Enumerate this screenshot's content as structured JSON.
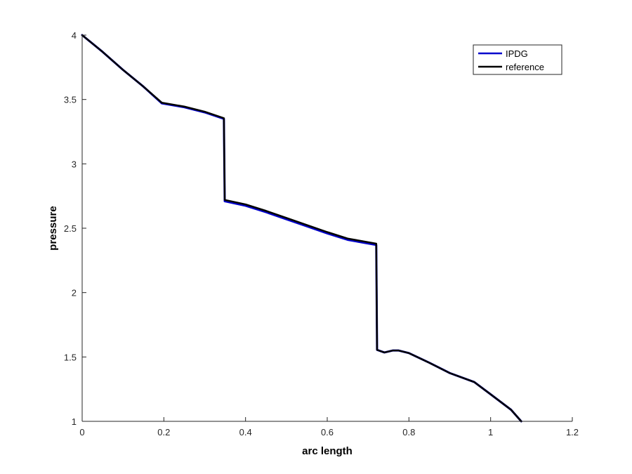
{
  "chart_data": {
    "type": "line",
    "title": "",
    "xlabel": "arc length",
    "ylabel": "pressure",
    "xlim": [
      0,
      1.2
    ],
    "ylim": [
      1,
      4
    ],
    "xticks": [
      0,
      0.2,
      0.4,
      0.6,
      0.8,
      1,
      1.2
    ],
    "yticks": [
      1,
      1.5,
      2,
      2.5,
      3,
      3.5,
      4
    ],
    "xtick_labels": [
      "0",
      "0.2",
      "0.4",
      "0.6",
      "0.8",
      "1",
      "1.2"
    ],
    "ytick_labels": [
      "1",
      "1.5",
      "2",
      "2.5",
      "3",
      "3.5",
      "4"
    ],
    "grid": false,
    "legend_position": "top-right",
    "series": [
      {
        "name": "IPDG",
        "color": "#0000cc",
        "points": [
          [
            0.0,
            4.0
          ],
          [
            0.05,
            3.87
          ],
          [
            0.1,
            3.73
          ],
          [
            0.15,
            3.6
          ],
          [
            0.195,
            3.47
          ],
          [
            0.25,
            3.44
          ],
          [
            0.3,
            3.4
          ],
          [
            0.347,
            3.35
          ],
          [
            0.349,
            2.71
          ],
          [
            0.4,
            2.675
          ],
          [
            0.45,
            2.625
          ],
          [
            0.5,
            2.57
          ],
          [
            0.55,
            2.515
          ],
          [
            0.6,
            2.46
          ],
          [
            0.65,
            2.41
          ],
          [
            0.72,
            2.37
          ],
          [
            0.722,
            1.555
          ],
          [
            0.74,
            1.535
          ],
          [
            0.76,
            1.55
          ],
          [
            0.775,
            1.55
          ],
          [
            0.8,
            1.53
          ],
          [
            0.85,
            1.455
          ],
          [
            0.9,
            1.375
          ],
          [
            0.96,
            1.305
          ],
          [
            1.0,
            1.21
          ],
          [
            1.05,
            1.09
          ],
          [
            1.075,
            1.0
          ]
        ]
      },
      {
        "name": "reference",
        "color": "#000000",
        "points": [
          [
            0.0,
            4.0
          ],
          [
            0.05,
            3.87
          ],
          [
            0.1,
            3.73
          ],
          [
            0.15,
            3.6
          ],
          [
            0.195,
            3.475
          ],
          [
            0.25,
            3.445
          ],
          [
            0.3,
            3.405
          ],
          [
            0.347,
            3.355
          ],
          [
            0.349,
            2.72
          ],
          [
            0.4,
            2.685
          ],
          [
            0.45,
            2.635
          ],
          [
            0.5,
            2.58
          ],
          [
            0.55,
            2.525
          ],
          [
            0.6,
            2.47
          ],
          [
            0.65,
            2.42
          ],
          [
            0.72,
            2.38
          ],
          [
            0.722,
            1.555
          ],
          [
            0.74,
            1.535
          ],
          [
            0.76,
            1.55
          ],
          [
            0.775,
            1.55
          ],
          [
            0.8,
            1.53
          ],
          [
            0.85,
            1.455
          ],
          [
            0.9,
            1.375
          ],
          [
            0.96,
            1.305
          ],
          [
            1.0,
            1.21
          ],
          [
            1.05,
            1.09
          ],
          [
            1.075,
            1.0
          ]
        ]
      }
    ]
  }
}
